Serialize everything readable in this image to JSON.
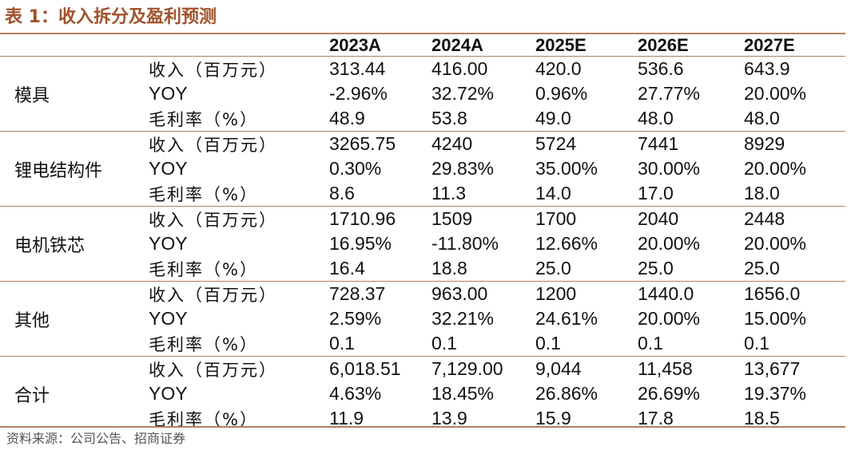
{
  "title": "表 1：收入拆分及盈利预测",
  "header": [
    "",
    "",
    "2023A",
    "2024A",
    "2025E",
    "2026E",
    "2027E"
  ],
  "groups": [
    {
      "segment": "模具",
      "rows": [
        {
          "metric": "收入（百万元）",
          "values": [
            "313.44",
            "416.00",
            "420.0",
            "536.6",
            "643.9"
          ]
        },
        {
          "metric": "YOY",
          "values": [
            "-2.96%",
            "32.72%",
            "0.96%",
            "27.77%",
            "20.00%"
          ]
        },
        {
          "metric": "毛利率（%）",
          "values": [
            "48.9",
            "53.8",
            "49.0",
            "48.0",
            "48.0"
          ]
        }
      ]
    },
    {
      "segment": "锂电结构件",
      "rows": [
        {
          "metric": "收入（百万元）",
          "values": [
            "3265.75",
            "4240",
            "5724",
            "7441",
            "8929"
          ]
        },
        {
          "metric": "YOY",
          "values": [
            "0.30%",
            "29.83%",
            "35.00%",
            "30.00%",
            "20.00%"
          ]
        },
        {
          "metric": "毛利率（%）",
          "values": [
            "8.6",
            "11.3",
            "14.0",
            "17.0",
            "18.0"
          ]
        }
      ]
    },
    {
      "segment": "电机铁芯",
      "rows": [
        {
          "metric": "收入（百万元）",
          "values": [
            "1710.96",
            "1509",
            "1700",
            "2040",
            "2448"
          ]
        },
        {
          "metric": "YOY",
          "values": [
            "16.95%",
            "-11.80%",
            "12.66%",
            "20.00%",
            "20.00%"
          ]
        },
        {
          "metric": "毛利率（%）",
          "values": [
            "16.4",
            "18.8",
            "25.0",
            "25.0",
            "25.0"
          ]
        }
      ]
    },
    {
      "segment": "其他",
      "rows": [
        {
          "metric": "收入（百万元）",
          "values": [
            "728.37",
            "963.00",
            "1200",
            "1440.0",
            "1656.0"
          ]
        },
        {
          "metric": "YOY",
          "values": [
            "2.59%",
            "32.21%",
            "24.61%",
            "20.00%",
            "15.00%"
          ]
        },
        {
          "metric": "毛利率（%）",
          "values": [
            "0.1",
            "0.1",
            "0.1",
            "0.1",
            "0.1"
          ]
        }
      ]
    },
    {
      "segment": "合计",
      "rows": [
        {
          "metric": "收入（百万元）",
          "values": [
            "6,018.51",
            "7,129.00",
            "9,044",
            "11,458",
            "13,677"
          ]
        },
        {
          "metric": "YOY",
          "values": [
            "4.63%",
            "18.45%",
            "26.86%",
            "26.69%",
            "19.37%"
          ]
        },
        {
          "metric": "毛利率（%）",
          "values": [
            "11.9",
            "13.9",
            "15.9",
            "17.8",
            "18.5"
          ]
        }
      ]
    }
  ],
  "source": "资料来源：公司公告、招商证券"
}
